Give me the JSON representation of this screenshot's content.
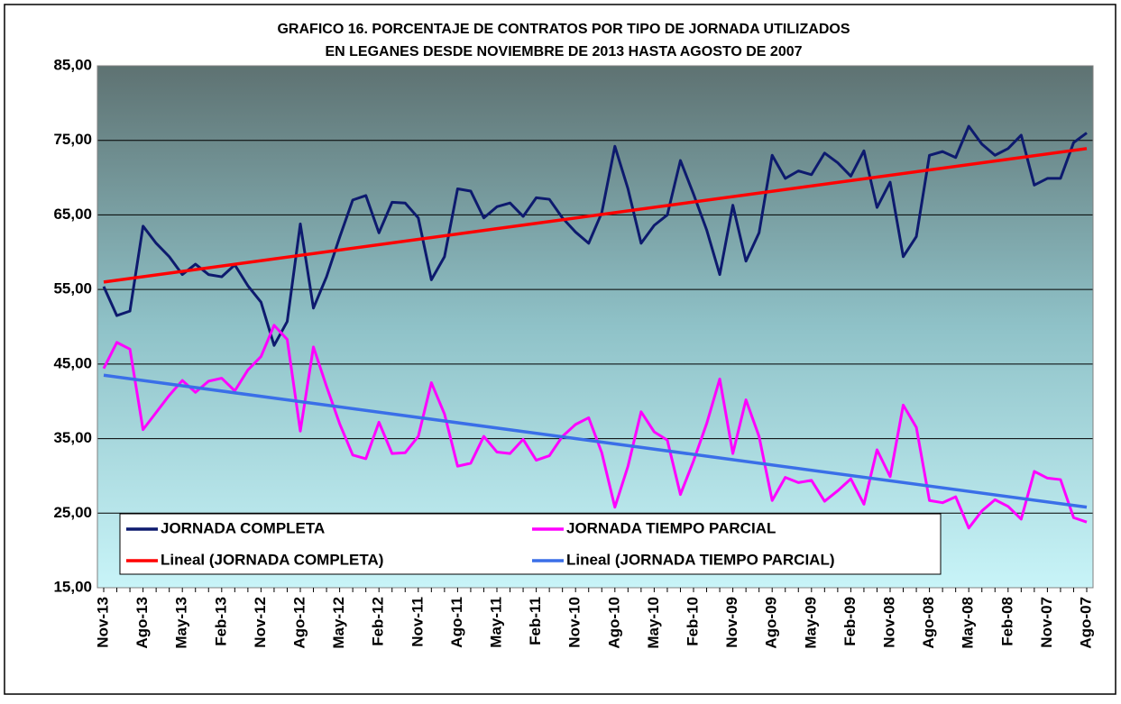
{
  "chart_data": {
    "type": "line",
    "title": [
      "GRAFICO 16. PORCENTAJE DE CONTRATOS POR TIPO DE JORNADA UTILIZADOS",
      "EN LEGANES DESDE NOVIEMBRE DE 2013 HASTA AGOSTO DE 2007"
    ],
    "categories": [
      "Nov-13",
      null,
      null,
      "Ago-13",
      null,
      null,
      "May-13",
      null,
      null,
      "Feb-13",
      null,
      null,
      "Nov-12",
      null,
      null,
      "Ago-12",
      null,
      null,
      "May-12",
      null,
      null,
      "Feb-12",
      null,
      null,
      "Nov-11",
      null,
      null,
      "Ago-11",
      null,
      null,
      "May-11",
      null,
      null,
      "Feb-11",
      null,
      null,
      "Nov-10",
      null,
      null,
      "Ago-10",
      null,
      null,
      "May-10",
      null,
      null,
      "Feb-10",
      null,
      null,
      "Nov-09",
      null,
      null,
      "Ago-09",
      null,
      null,
      "May-09",
      null,
      null,
      "Feb-09",
      null,
      null,
      "Nov-08",
      null,
      null,
      "Ago-08",
      null,
      null,
      "May-08",
      null,
      null,
      "Feb-08",
      null,
      null,
      "Nov-07",
      null,
      null,
      "Ago-07"
    ],
    "series": [
      {
        "name": "JORNADA COMPLETA",
        "color": "#0d1a6e",
        "values": [
          55.4,
          51.5,
          52.1,
          63.5,
          61.2,
          59.4,
          57.0,
          58.4,
          57.0,
          56.7,
          58.3,
          55.5,
          53.3,
          47.5,
          50.7,
          63.8,
          52.5,
          56.7,
          62.0,
          67.0,
          67.6,
          62.6,
          66.7,
          66.6,
          64.6,
          56.3,
          59.4,
          68.5,
          68.2,
          64.6,
          66.1,
          66.6,
          64.8,
          67.3,
          67.1,
          64.6,
          62.7,
          61.2,
          65.3,
          74.2,
          68.5,
          61.2,
          63.6,
          65.0,
          72.3,
          67.8,
          63.0,
          57.0,
          66.3,
          58.8,
          62.6,
          73.0,
          69.9,
          70.9,
          70.4,
          73.3,
          72.0,
          70.2,
          73.6,
          66.0,
          69.4,
          59.4,
          62.1,
          73.0,
          73.5,
          72.7,
          76.9,
          74.5,
          73.0,
          73.9,
          75.7,
          69.0,
          69.9,
          69.9,
          74.7,
          76.0
        ]
      },
      {
        "name": "JORNADA TIEMPO PARCIAL",
        "color": "#ff00ff",
        "values": [
          44.4,
          47.9,
          47.0,
          36.2,
          38.5,
          40.8,
          42.8,
          41.2,
          42.7,
          43.1,
          41.4,
          44.2,
          46.0,
          50.2,
          48.3,
          36.0,
          47.3,
          42.0,
          37.0,
          32.8,
          32.3,
          37.2,
          33.0,
          33.1,
          35.3,
          42.5,
          38.3,
          31.3,
          31.7,
          35.3,
          33.2,
          33.0,
          34.9,
          32.1,
          32.7,
          35.3,
          36.9,
          37.8,
          33.1,
          25.8,
          31.3,
          38.6,
          35.9,
          34.8,
          27.5,
          32.0,
          37.0,
          43.0,
          33.0,
          40.2,
          35.3,
          26.7,
          29.8,
          29.1,
          29.4,
          26.6,
          28.0,
          29.6,
          26.2,
          33.5,
          29.9,
          39.5,
          36.5,
          26.7,
          26.4,
          27.2,
          23.0,
          25.3,
          26.8,
          25.9,
          24.2,
          30.6,
          29.7,
          29.5,
          24.4,
          23.8
        ]
      },
      {
        "name": "Lineal (JORNADA COMPLETA)",
        "color": "#ff0000",
        "start": 56.0,
        "end": 73.9
      },
      {
        "name": "Lineal (JORNADA TIEMPO PARCIAL)",
        "color": "#3a6fe8",
        "start": 43.5,
        "end": 25.8
      }
    ],
    "ylim": [
      15,
      85
    ],
    "yticks": [
      {
        "value": 15,
        "label": "15,00"
      },
      {
        "value": 25,
        "label": "25,00"
      },
      {
        "value": 35,
        "label": "35,00"
      },
      {
        "value": 45,
        "label": "45,00"
      },
      {
        "value": 55,
        "label": "55,00"
      },
      {
        "value": 65,
        "label": "65,00"
      },
      {
        "value": 75,
        "label": "75,00"
      },
      {
        "value": 85,
        "label": "85,00"
      }
    ],
    "grid": true,
    "legend": "bottom"
  }
}
